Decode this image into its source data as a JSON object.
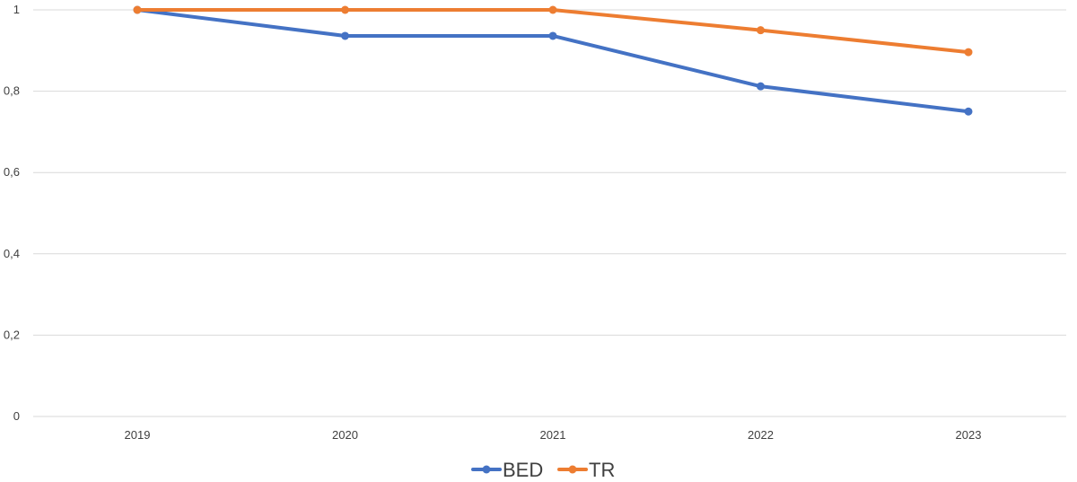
{
  "chart_data": {
    "type": "line",
    "title": "",
    "xlabel": "",
    "ylabel": "",
    "categories": [
      "2019",
      "2020",
      "2021",
      "2022",
      "2023"
    ],
    "ylim": [
      0,
      1
    ],
    "yticks": [
      0,
      0.2,
      0.4,
      0.6,
      0.8,
      1
    ],
    "ytick_labels": [
      "0",
      "0,2",
      "0,4",
      "0,6",
      "0,8",
      "1"
    ],
    "grid": true,
    "legend_position": "bottom",
    "series": [
      {
        "name": "BED",
        "color": "#4472C4",
        "values": [
          1.0,
          0.936,
          0.936,
          0.812,
          0.75
        ]
      },
      {
        "name": "TR",
        "color": "#ED7D31",
        "values": [
          1.0,
          1.0,
          1.0,
          0.95,
          0.896
        ]
      }
    ]
  }
}
